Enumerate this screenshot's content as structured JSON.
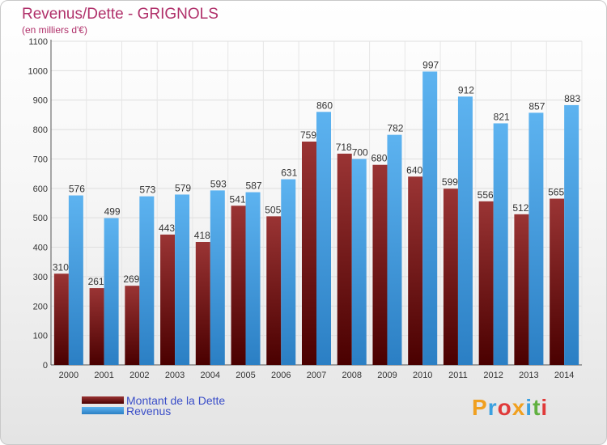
{
  "chart_data": {
    "type": "bar",
    "title": "Revenus/Dette - GRIGNOLS",
    "subtitle": "(en milliers d'€)",
    "categories": [
      "2000",
      "2001",
      "2002",
      "2003",
      "2004",
      "2005",
      "2006",
      "2007",
      "2008",
      "2009",
      "2010",
      "2011",
      "2012",
      "2013",
      "2014"
    ],
    "series": [
      {
        "name": "Montant de la Dette",
        "color": "#7a1f1f",
        "values": [
          310,
          261,
          269,
          443,
          418,
          541,
          505,
          759,
          718,
          680,
          640,
          599,
          556,
          512,
          565
        ]
      },
      {
        "name": "Revenus",
        "color": "#3e9ee6",
        "values": [
          576,
          499,
          573,
          579,
          593,
          587,
          631,
          860,
          700,
          782,
          997,
          912,
          821,
          857,
          883
        ]
      }
    ],
    "yticks": [
      0,
      100,
      200,
      300,
      400,
      500,
      600,
      700,
      800,
      900,
      1000,
      1100
    ],
    "ylim": [
      0,
      1100
    ],
    "grid": true,
    "legend_position": "bottom-left"
  },
  "brand": {
    "letters": [
      "P",
      "r",
      "o",
      "x",
      "i",
      "t",
      "i"
    ],
    "colors": [
      "#f0a020",
      "#3aa0e0",
      "#e03a3a",
      "#f0a020",
      "#3aa0e0",
      "#60b040",
      "#e03a3a"
    ]
  }
}
